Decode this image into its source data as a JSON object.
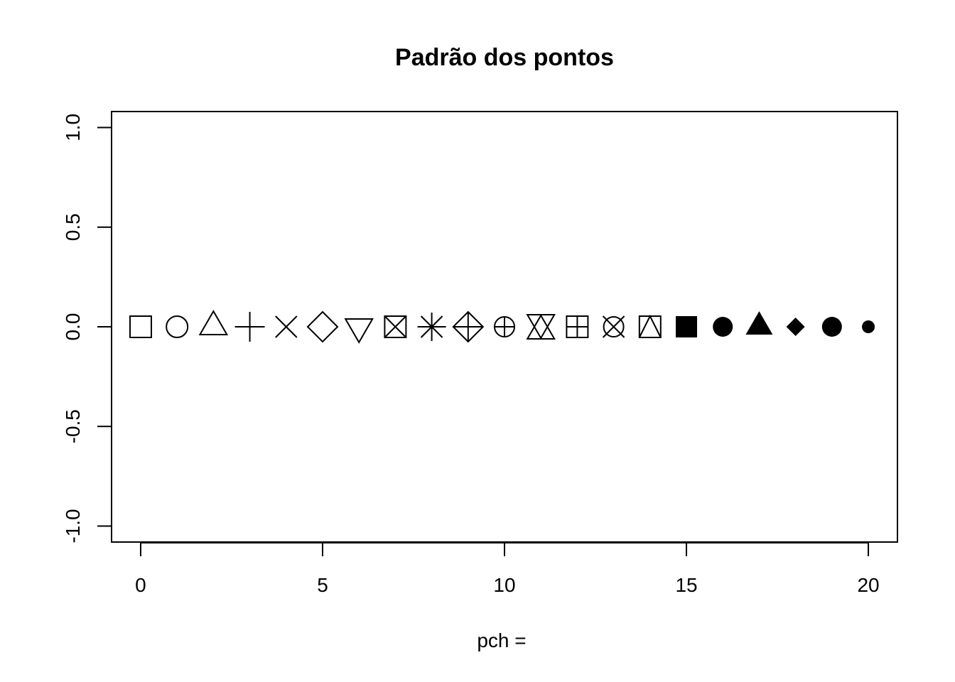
{
  "chart_data": {
    "type": "scatter",
    "title": "Padrão dos pontos",
    "xlabel": "pch =",
    "ylabel": "",
    "xlim": [
      -0.8,
      20.8
    ],
    "ylim": [
      -1.08,
      1.08
    ],
    "x_ticks": [
      0,
      5,
      10,
      15,
      20
    ],
    "x_tick_labels": [
      "0",
      "5",
      "10",
      "15",
      "20"
    ],
    "y_ticks": [
      -1.0,
      -0.5,
      0.0,
      0.5,
      1.0
    ],
    "y_tick_labels": [
      "-1.0",
      "-0.5",
      "0.0",
      "0.5",
      "1.0"
    ],
    "grid": false,
    "points": [
      {
        "x": 0,
        "y": 0,
        "pch": 0,
        "symbol": "open-square-icon"
      },
      {
        "x": 1,
        "y": 0,
        "pch": 1,
        "symbol": "open-circle-icon"
      },
      {
        "x": 2,
        "y": 0,
        "pch": 2,
        "symbol": "open-triangle-up-icon"
      },
      {
        "x": 3,
        "y": 0,
        "pch": 3,
        "symbol": "plus-icon"
      },
      {
        "x": 4,
        "y": 0,
        "pch": 4,
        "symbol": "cross-x-icon"
      },
      {
        "x": 5,
        "y": 0,
        "pch": 5,
        "symbol": "open-diamond-icon"
      },
      {
        "x": 6,
        "y": 0,
        "pch": 6,
        "symbol": "open-triangle-down-icon"
      },
      {
        "x": 7,
        "y": 0,
        "pch": 7,
        "symbol": "square-cross-icon"
      },
      {
        "x": 8,
        "y": 0,
        "pch": 8,
        "symbol": "asterisk-icon"
      },
      {
        "x": 9,
        "y": 0,
        "pch": 9,
        "symbol": "diamond-plus-icon"
      },
      {
        "x": 10,
        "y": 0,
        "pch": 10,
        "symbol": "circle-plus-icon"
      },
      {
        "x": 11,
        "y": 0,
        "pch": 11,
        "symbol": "star-of-david-icon"
      },
      {
        "x": 12,
        "y": 0,
        "pch": 12,
        "symbol": "square-plus-icon"
      },
      {
        "x": 13,
        "y": 0,
        "pch": 13,
        "symbol": "circle-cross-icon"
      },
      {
        "x": 14,
        "y": 0,
        "pch": 14,
        "symbol": "square-triangle-icon"
      },
      {
        "x": 15,
        "y": 0,
        "pch": 15,
        "symbol": "filled-square-icon"
      },
      {
        "x": 16,
        "y": 0,
        "pch": 16,
        "symbol": "filled-circle-icon"
      },
      {
        "x": 17,
        "y": 0,
        "pch": 17,
        "symbol": "filled-triangle-icon"
      },
      {
        "x": 18,
        "y": 0,
        "pch": 18,
        "symbol": "filled-diamond-icon"
      },
      {
        "x": 19,
        "y": 0,
        "pch": 19,
        "symbol": "filled-circle-large-icon"
      },
      {
        "x": 20,
        "y": 0,
        "pch": 20,
        "symbol": "filled-dot-small-icon"
      }
    ],
    "colors": {
      "foreground": "#000000",
      "background": "#ffffff"
    }
  }
}
